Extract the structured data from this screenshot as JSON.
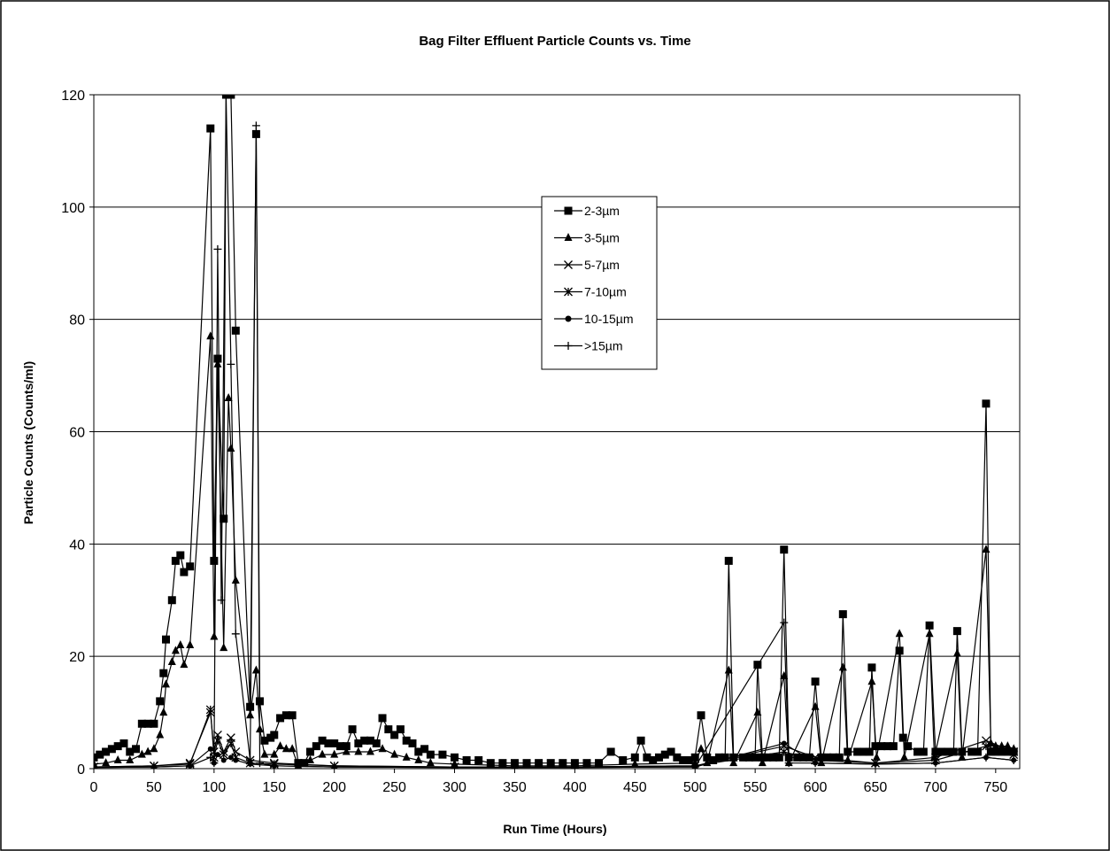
{
  "chart_data": {
    "type": "line",
    "title": "Bag Filter Effluent Particle Counts vs. Time",
    "xlabel": "Run Time (Hours)",
    "ylabel": "Particle Counts (Counts/ml)",
    "xlim": [
      0,
      770
    ],
    "ylim": [
      0,
      120
    ],
    "x_ticks": [
      0,
      50,
      100,
      150,
      200,
      250,
      300,
      350,
      400,
      450,
      500,
      550,
      600,
      650,
      700,
      750
    ],
    "y_ticks": [
      0,
      20,
      40,
      60,
      80,
      100,
      120
    ],
    "grid": true,
    "legend_position": "top-center",
    "series": [
      {
        "name": "2-3µm",
        "marker": "square",
        "points": [
          [
            0,
            2
          ],
          [
            5,
            2.5
          ],
          [
            10,
            3
          ],
          [
            15,
            3.5
          ],
          [
            20,
            4
          ],
          [
            25,
            4.5
          ],
          [
            30,
            3
          ],
          [
            35,
            3.5
          ],
          [
            40,
            8
          ],
          [
            45,
            8
          ],
          [
            50,
            8
          ],
          [
            55,
            12
          ],
          [
            58,
            17
          ],
          [
            60,
            23
          ],
          [
            65,
            30
          ],
          [
            68,
            37
          ],
          [
            72,
            38
          ],
          [
            75,
            35
          ],
          [
            80,
            36
          ],
          [
            97,
            114
          ],
          [
            100,
            37
          ],
          [
            103,
            73
          ],
          [
            108,
            44.5
          ],
          [
            110,
            120
          ],
          [
            114,
            120
          ],
          [
            118,
            78
          ],
          [
            130,
            11
          ],
          [
            135,
            113
          ],
          [
            138,
            12
          ],
          [
            142,
            5
          ],
          [
            147,
            5.5
          ],
          [
            150,
            6
          ],
          [
            155,
            9
          ],
          [
            160,
            9.5
          ],
          [
            165,
            9.5
          ],
          [
            170,
            1
          ],
          [
            175,
            1
          ],
          [
            180,
            3
          ],
          [
            185,
            4
          ],
          [
            190,
            5
          ],
          [
            195,
            4.5
          ],
          [
            200,
            4.5
          ],
          [
            205,
            4
          ],
          [
            210,
            4
          ],
          [
            215,
            7
          ],
          [
            220,
            4.5
          ],
          [
            225,
            5
          ],
          [
            230,
            5
          ],
          [
            235,
            4.5
          ],
          [
            240,
            9
          ],
          [
            245,
            7
          ],
          [
            250,
            6
          ],
          [
            255,
            7
          ],
          [
            260,
            5
          ],
          [
            265,
            4.5
          ],
          [
            270,
            3
          ],
          [
            275,
            3.5
          ],
          [
            280,
            2.5
          ],
          [
            290,
            2.5
          ],
          [
            300,
            2
          ],
          [
            310,
            1.5
          ],
          [
            320,
            1.5
          ],
          [
            330,
            1
          ],
          [
            340,
            1
          ],
          [
            350,
            1
          ],
          [
            360,
            1
          ],
          [
            370,
            1
          ],
          [
            380,
            1
          ],
          [
            390,
            1
          ],
          [
            400,
            1
          ],
          [
            410,
            1
          ],
          [
            420,
            1
          ],
          [
            430,
            3
          ],
          [
            440,
            1.5
          ],
          [
            450,
            2
          ],
          [
            455,
            5
          ],
          [
            460,
            2
          ],
          [
            465,
            1.5
          ],
          [
            470,
            2
          ],
          [
            475,
            2.5
          ],
          [
            480,
            3
          ],
          [
            485,
            2
          ],
          [
            490,
            1.5
          ],
          [
            495,
            1.5
          ],
          [
            500,
            2
          ],
          [
            505,
            9.5
          ],
          [
            510,
            2
          ],
          [
            515,
            1.5
          ],
          [
            520,
            2
          ],
          [
            525,
            2
          ],
          [
            528,
            37
          ],
          [
            532,
            2
          ],
          [
            540,
            2
          ],
          [
            545,
            2
          ],
          [
            550,
            2
          ],
          [
            552,
            18.5
          ],
          [
            556,
            2
          ],
          [
            560,
            2
          ],
          [
            565,
            2
          ],
          [
            570,
            2
          ],
          [
            574,
            39
          ],
          [
            578,
            2
          ],
          [
            585,
            2
          ],
          [
            590,
            2
          ],
          [
            595,
            2
          ],
          [
            600,
            15.5
          ],
          [
            605,
            2
          ],
          [
            610,
            2
          ],
          [
            615,
            2
          ],
          [
            620,
            2
          ],
          [
            623,
            27.5
          ],
          [
            627,
            3
          ],
          [
            635,
            3
          ],
          [
            640,
            3
          ],
          [
            645,
            3
          ],
          [
            647,
            18
          ],
          [
            650,
            4
          ],
          [
            655,
            4
          ],
          [
            660,
            4
          ],
          [
            665,
            4
          ],
          [
            670,
            21
          ],
          [
            673,
            5.5
          ],
          [
            677,
            4
          ],
          [
            685,
            3
          ],
          [
            690,
            3
          ],
          [
            695,
            25.5
          ],
          [
            700,
            3
          ],
          [
            705,
            3
          ],
          [
            710,
            3
          ],
          [
            715,
            3
          ],
          [
            718,
            24.5
          ],
          [
            722,
            3
          ],
          [
            730,
            3
          ],
          [
            735,
            3
          ],
          [
            742,
            65
          ],
          [
            746,
            3
          ],
          [
            750,
            3
          ],
          [
            755,
            3
          ],
          [
            760,
            3
          ],
          [
            765,
            3
          ]
        ]
      },
      {
        "name": "3-5µm",
        "marker": "triangle",
        "points": [
          [
            0,
            0.8
          ],
          [
            10,
            1
          ],
          [
            20,
            1.5
          ],
          [
            30,
            1.5
          ],
          [
            40,
            2.5
          ],
          [
            45,
            3
          ],
          [
            50,
            3.5
          ],
          [
            55,
            6
          ],
          [
            58,
            10
          ],
          [
            60,
            15
          ],
          [
            65,
            19
          ],
          [
            68,
            21
          ],
          [
            72,
            22
          ],
          [
            75,
            18.5
          ],
          [
            80,
            22
          ],
          [
            97,
            77
          ],
          [
            100,
            23.5
          ],
          [
            103,
            72
          ],
          [
            108,
            21.5
          ],
          [
            112,
            66
          ],
          [
            114,
            57
          ],
          [
            118,
            33.5
          ],
          [
            130,
            9.5
          ],
          [
            135,
            17.5
          ],
          [
            138,
            7
          ],
          [
            142,
            2.5
          ],
          [
            150,
            2.5
          ],
          [
            155,
            4
          ],
          [
            160,
            3.5
          ],
          [
            165,
            3.5
          ],
          [
            170,
            0.5
          ],
          [
            180,
            1.5
          ],
          [
            190,
            2.5
          ],
          [
            200,
            2.5
          ],
          [
            210,
            3
          ],
          [
            220,
            3
          ],
          [
            230,
            3
          ],
          [
            240,
            3.5
          ],
          [
            250,
            2.5
          ],
          [
            260,
            2
          ],
          [
            270,
            1.5
          ],
          [
            280,
            1
          ],
          [
            300,
            0.8
          ],
          [
            350,
            0.5
          ],
          [
            400,
            0.5
          ],
          [
            450,
            0.8
          ],
          [
            500,
            1
          ],
          [
            505,
            3.5
          ],
          [
            510,
            1
          ],
          [
            528,
            17.5
          ],
          [
            532,
            1
          ],
          [
            552,
            10
          ],
          [
            556,
            1
          ],
          [
            574,
            16.5
          ],
          [
            578,
            1
          ],
          [
            600,
            11
          ],
          [
            605,
            1
          ],
          [
            623,
            18
          ],
          [
            627,
            1.5
          ],
          [
            647,
            15.5
          ],
          [
            651,
            2
          ],
          [
            670,
            24
          ],
          [
            674,
            2
          ],
          [
            695,
            24
          ],
          [
            699,
            2
          ],
          [
            718,
            20.5
          ],
          [
            722,
            2
          ],
          [
            742,
            39
          ],
          [
            746,
            4.5
          ],
          [
            750,
            4
          ],
          [
            755,
            4
          ],
          [
            760,
            4
          ],
          [
            765,
            3.5
          ]
        ]
      },
      {
        "name": "5-7µm",
        "marker": "x",
        "points": [
          [
            0,
            0.3
          ],
          [
            50,
            0.5
          ],
          [
            80,
            1
          ],
          [
            97,
            10
          ],
          [
            100,
            3
          ],
          [
            103,
            6
          ],
          [
            108,
            3
          ],
          [
            114,
            5.5
          ],
          [
            118,
            3
          ],
          [
            130,
            1.5
          ],
          [
            150,
            1
          ],
          [
            200,
            0.5
          ],
          [
            300,
            0.3
          ],
          [
            400,
            0.3
          ],
          [
            500,
            0.5
          ],
          [
            574,
            4
          ],
          [
            600,
            2
          ],
          [
            650,
            1
          ],
          [
            700,
            2
          ],
          [
            742,
            5
          ],
          [
            765,
            3
          ]
        ]
      },
      {
        "name": "7-10µm",
        "marker": "asterisk",
        "points": [
          [
            0,
            0.3
          ],
          [
            50,
            0.5
          ],
          [
            80,
            0.8
          ],
          [
            97,
            10.5
          ],
          [
            100,
            2
          ],
          [
            103,
            5
          ],
          [
            108,
            2.5
          ],
          [
            114,
            4.5
          ],
          [
            118,
            2
          ],
          [
            130,
            1
          ],
          [
            150,
            0.8
          ],
          [
            200,
            0.5
          ],
          [
            300,
            0.3
          ],
          [
            400,
            0.3
          ],
          [
            500,
            0.5
          ],
          [
            574,
            3
          ],
          [
            600,
            1.5
          ],
          [
            650,
            1
          ],
          [
            700,
            1.5
          ],
          [
            742,
            4
          ],
          [
            765,
            2.5
          ]
        ]
      },
      {
        "name": "10-15µm",
        "marker": "circle",
        "points": [
          [
            0,
            0.2
          ],
          [
            50,
            0.3
          ],
          [
            80,
            0.5
          ],
          [
            97,
            3.5
          ],
          [
            100,
            1
          ],
          [
            103,
            2.5
          ],
          [
            108,
            1.5
          ],
          [
            114,
            2
          ],
          [
            118,
            1.5
          ],
          [
            130,
            0.8
          ],
          [
            150,
            0.5
          ],
          [
            200,
            0.3
          ],
          [
            300,
            0.2
          ],
          [
            400,
            0.2
          ],
          [
            500,
            0.3
          ],
          [
            574,
            4.5
          ],
          [
            600,
            1
          ],
          [
            650,
            0.8
          ],
          [
            700,
            1
          ],
          [
            742,
            2
          ],
          [
            765,
            1.5
          ]
        ]
      },
      {
        "name": ">15µm",
        "marker": "plus",
        "points": [
          [
            0,
            0.2
          ],
          [
            50,
            0.3
          ],
          [
            80,
            0.5
          ],
          [
            97,
            2
          ],
          [
            100,
            1
          ],
          [
            103,
            92.5
          ],
          [
            106,
            30
          ],
          [
            110,
            120
          ],
          [
            114,
            72
          ],
          [
            118,
            24
          ],
          [
            130,
            1.5
          ],
          [
            135,
            114.5
          ],
          [
            138,
            1
          ],
          [
            150,
            0.5
          ],
          [
            200,
            0.3
          ],
          [
            300,
            0.2
          ],
          [
            400,
            0.2
          ],
          [
            500,
            0.3
          ],
          [
            574,
            26
          ],
          [
            578,
            1
          ],
          [
            600,
            1
          ],
          [
            650,
            0.8
          ],
          [
            700,
            1
          ],
          [
            742,
            2
          ],
          [
            765,
            1.5
          ]
        ]
      }
    ]
  }
}
